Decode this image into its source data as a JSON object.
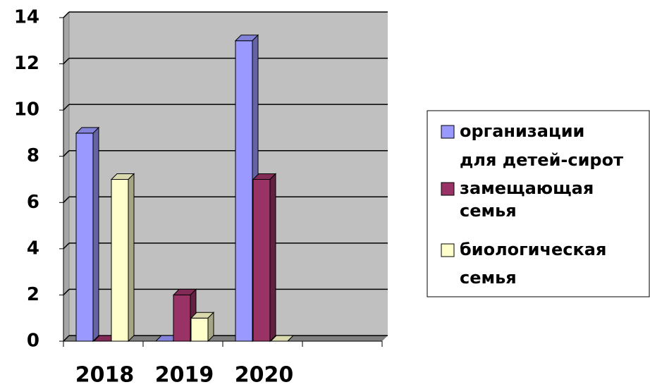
{
  "chart_data": {
    "type": "bar3d",
    "categories": [
      "2018",
      "2019",
      "2020",
      null
    ],
    "series": [
      {
        "name": "организации для детей-сирот",
        "color": "#9999ff",
        "values": [
          9,
          0,
          13,
          null
        ]
      },
      {
        "name": "замещающая семья",
        "color": "#993366",
        "values": [
          0,
          2,
          7,
          null
        ]
      },
      {
        "name": "биологическая семья",
        "color": "#ffffcc",
        "values": [
          7,
          1,
          0,
          null
        ]
      }
    ],
    "ylim": [
      0,
      14
    ],
    "yticks": [
      0,
      2,
      4,
      6,
      8,
      10,
      12,
      14
    ],
    "grid": true,
    "legend": "right"
  }
}
